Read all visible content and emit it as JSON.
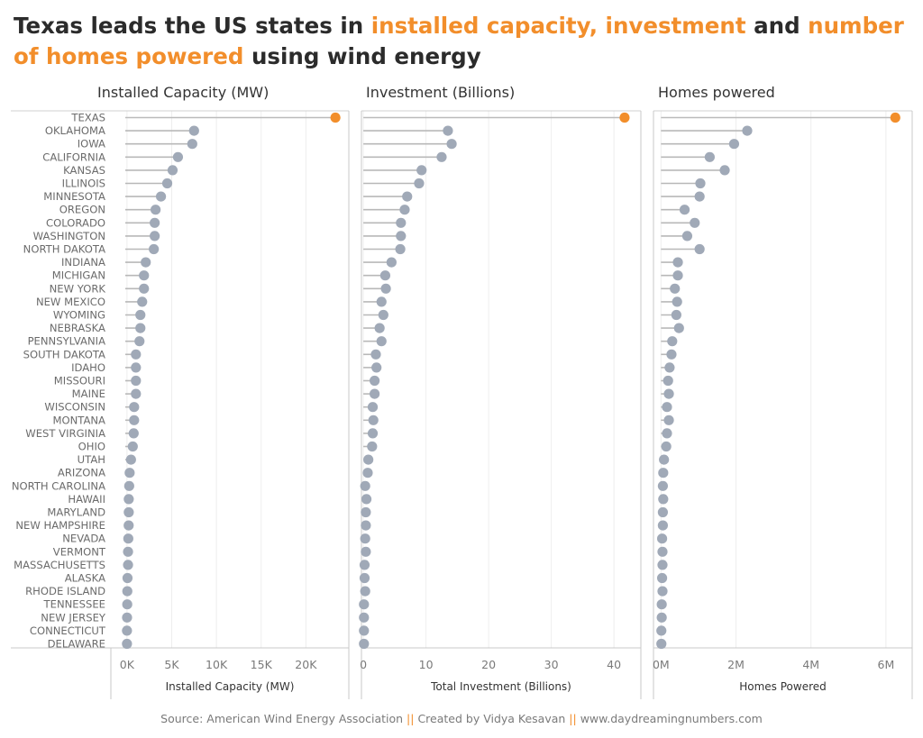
{
  "title": {
    "part1": "Texas leads the US states in ",
    "highlight1": "installed capacity, investment",
    "part2": " and ",
    "highlight2": "number of homes powered",
    "part3": " using wind energy"
  },
  "source": {
    "part1": "Source: American Wind Energy Association ",
    "sep": "||",
    "part2": " Created by Vidya Kesavan ",
    "part3": " www.daydreamingnumbers.com"
  },
  "colors": {
    "highlight": "#f28e2b",
    "dot": "#a0a9b7",
    "stem": "#b8b8b8",
    "text": "#2b2b2b",
    "axis": "#c8c8c8"
  },
  "chart_data": {
    "type": "lollipop",
    "categories": [
      "TEXAS",
      "OKLAHOMA",
      "IOWA",
      "CALIFORNIA",
      "KANSAS",
      "ILLINOIS",
      "MINNESOTA",
      "OREGON",
      "COLORADO",
      "WASHINGTON",
      "NORTH DAKOTA",
      "INDIANA",
      "MICHIGAN",
      "NEW YORK",
      "NEW MEXICO",
      "WYOMING",
      "NEBRASKA",
      "PENNSYLVANIA",
      "SOUTH DAKOTA",
      "IDAHO",
      "MISSOURI",
      "MAINE",
      "WISCONSIN",
      "MONTANA",
      "WEST VIRGINIA",
      "OHIO",
      "UTAH",
      "ARIZONA",
      "NORTH CAROLINA",
      "HAWAII",
      "MARYLAND",
      "NEW HAMPSHIRE",
      "NEVADA",
      "VERMONT",
      "MASSACHUSETTS",
      "ALASKA",
      "RHODE ISLAND",
      "TENNESSEE",
      "NEW JERSEY",
      "CONNECTICUT",
      "DELAWARE"
    ],
    "panels": [
      {
        "title": "Installed Capacity (MW)",
        "xlabel": "Installed Capacity (MW)",
        "xlim": [
          -1800,
          24800
        ],
        "ticks": [
          0,
          5000,
          10000,
          15000,
          20000
        ],
        "tick_labels": [
          "0K",
          "5K",
          "10K",
          "15K",
          "20K"
        ],
        "values": [
          23300,
          7500,
          7300,
          5700,
          5100,
          4500,
          3800,
          3200,
          3100,
          3100,
          3000,
          2100,
          1900,
          1900,
          1700,
          1500,
          1500,
          1400,
          1000,
          1000,
          1000,
          1000,
          800,
          800,
          750,
          650,
          450,
          300,
          250,
          200,
          200,
          190,
          150,
          120,
          120,
          60,
          40,
          30,
          10,
          0,
          0
        ]
      },
      {
        "title": "Investment (Billions)",
        "xlabel": "Total Investment (Billions)",
        "xlim": [
          -0.3,
          44.3
        ],
        "ticks": [
          0,
          10,
          20,
          30,
          40
        ],
        "tick_labels": [
          "0",
          "10",
          "20",
          "30",
          "40"
        ],
        "values": [
          41.7,
          13.5,
          14.1,
          12.5,
          9.3,
          8.9,
          7.0,
          6.6,
          6.0,
          6.0,
          5.9,
          4.5,
          3.5,
          3.6,
          2.9,
          3.2,
          2.6,
          2.9,
          2.0,
          2.1,
          1.8,
          1.8,
          1.5,
          1.6,
          1.5,
          1.4,
          0.8,
          0.7,
          0.3,
          0.5,
          0.4,
          0.4,
          0.3,
          0.4,
          0.2,
          0.2,
          0.3,
          0.1,
          0.1,
          0.1,
          0.1
        ]
      },
      {
        "title": "Homes powered",
        "xlabel": "Homes Powered",
        "xlim": [
          -200000,
          6700000
        ],
        "ticks": [
          0,
          2000000,
          4000000,
          6000000
        ],
        "tick_labels": [
          "0M",
          "2M",
          "4M",
          "6M"
        ],
        "values": [
          6250000,
          2300000,
          1950000,
          1300000,
          1700000,
          1050000,
          1030000,
          630000,
          900000,
          700000,
          1030000,
          450000,
          450000,
          370000,
          430000,
          410000,
          480000,
          300000,
          280000,
          230000,
          190000,
          210000,
          160000,
          210000,
          160000,
          140000,
          80000,
          60000,
          50000,
          60000,
          50000,
          50000,
          30000,
          40000,
          40000,
          30000,
          40000,
          20000,
          20000,
          10000,
          10000
        ]
      }
    ]
  }
}
